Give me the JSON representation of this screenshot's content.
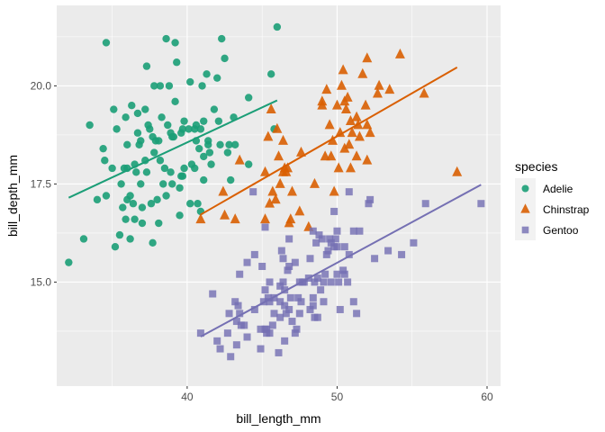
{
  "chart_data": {
    "type": "scatter",
    "xlabel": "bill_length_mm",
    "ylabel": "bill_depth_mm",
    "xlim": [
      31.3,
      60.9
    ],
    "ylim": [
      12.35,
      22.05
    ],
    "x_ticks": [
      40,
      50,
      60
    ],
    "x_tick_labels": [
      "40",
      "50",
      "60"
    ],
    "y_ticks": [
      15.0,
      17.5,
      20.0
    ],
    "y_tick_labels": [
      "15.0",
      "17.5",
      "20.0"
    ],
    "grid": true,
    "background": "#EBEBEB",
    "legend": {
      "title": "species",
      "position": "right"
    },
    "series": [
      {
        "name": "Adelie",
        "color": "#1B9E77",
        "marker": "circle",
        "fit_line": {
          "x": [
            32.1,
            46.0
          ],
          "y": [
            17.15,
            19.63
          ]
        },
        "points": [
          [
            32.1,
            15.5
          ],
          [
            33.1,
            16.1
          ],
          [
            33.5,
            19.0
          ],
          [
            34.0,
            17.1
          ],
          [
            34.4,
            18.4
          ],
          [
            34.5,
            18.1
          ],
          [
            34.6,
            21.1
          ],
          [
            34.6,
            17.2
          ],
          [
            35.0,
            17.9
          ],
          [
            35.1,
            19.4
          ],
          [
            35.2,
            15.9
          ],
          [
            35.3,
            18.9
          ],
          [
            35.5,
            16.2
          ],
          [
            35.6,
            17.5
          ],
          [
            35.7,
            16.9
          ],
          [
            35.9,
            19.2
          ],
          [
            35.9,
            16.6
          ],
          [
            36.0,
            18.5
          ],
          [
            36.0,
            17.9
          ],
          [
            36.0,
            17.1
          ],
          [
            36.2,
            17.2
          ],
          [
            36.2,
            16.1
          ],
          [
            36.3,
            19.5
          ],
          [
            36.4,
            17.0
          ],
          [
            36.5,
            18.0
          ],
          [
            36.5,
            16.6
          ],
          [
            36.6,
            17.8
          ],
          [
            36.7,
            18.8
          ],
          [
            36.7,
            19.3
          ],
          [
            36.8,
            18.5
          ],
          [
            36.9,
            18.6
          ],
          [
            37.0,
            16.9
          ],
          [
            37.0,
            16.5
          ],
          [
            37.2,
            18.1
          ],
          [
            37.2,
            19.4
          ],
          [
            37.3,
            20.5
          ],
          [
            37.3,
            17.8
          ],
          [
            37.5,
            18.9
          ],
          [
            37.6,
            17.0
          ],
          [
            37.7,
            18.7
          ],
          [
            37.7,
            16.0
          ],
          [
            37.8,
            18.3
          ],
          [
            37.8,
            20.0
          ],
          [
            37.9,
            18.6
          ],
          [
            38.0,
            17.1
          ],
          [
            38.1,
            18.6
          ],
          [
            38.1,
            16.5
          ],
          [
            38.2,
            18.1
          ],
          [
            38.2,
            20.0
          ],
          [
            38.3,
            19.2
          ],
          [
            38.5,
            17.9
          ],
          [
            38.6,
            21.2
          ],
          [
            38.6,
            17.2
          ],
          [
            38.7,
            19.0
          ],
          [
            38.8,
            20.0
          ],
          [
            38.9,
            18.8
          ],
          [
            38.9,
            17.8
          ],
          [
            39.0,
            17.5
          ],
          [
            39.0,
            18.7
          ],
          [
            39.1,
            18.7
          ],
          [
            39.2,
            19.6
          ],
          [
            39.2,
            21.1
          ],
          [
            39.3,
            20.6
          ],
          [
            39.5,
            17.4
          ],
          [
            39.5,
            16.7
          ],
          [
            39.6,
            17.7
          ],
          [
            39.6,
            18.8
          ],
          [
            39.7,
            17.7
          ],
          [
            39.7,
            18.9
          ],
          [
            39.8,
            19.1
          ],
          [
            40.1,
            18.9
          ],
          [
            40.2,
            17.0
          ],
          [
            40.2,
            20.1
          ],
          [
            40.3,
            18.0
          ],
          [
            40.5,
            17.9
          ],
          [
            40.5,
            18.9
          ],
          [
            40.6,
            18.6
          ],
          [
            40.6,
            19.0
          ],
          [
            40.7,
            17.0
          ],
          [
            40.8,
            18.4
          ],
          [
            40.9,
            16.8
          ],
          [
            40.9,
            18.9
          ],
          [
            41.0,
            20.0
          ],
          [
            41.1,
            18.2
          ],
          [
            41.1,
            19.1
          ],
          [
            41.1,
            17.6
          ],
          [
            41.3,
            20.3
          ],
          [
            41.4,
            18.6
          ],
          [
            41.4,
            18.5
          ],
          [
            41.5,
            18.3
          ],
          [
            41.6,
            18.0
          ],
          [
            41.8,
            19.4
          ],
          [
            42.0,
            20.2
          ],
          [
            42.1,
            19.1
          ],
          [
            42.2,
            18.5
          ],
          [
            42.3,
            21.2
          ],
          [
            42.5,
            20.7
          ],
          [
            42.7,
            18.3
          ],
          [
            42.8,
            18.5
          ],
          [
            42.9,
            17.6
          ],
          [
            43.1,
            19.2
          ],
          [
            43.2,
            18.5
          ],
          [
            44.1,
            19.7
          ],
          [
            44.1,
            18.0
          ],
          [
            45.6,
            20.3
          ],
          [
            45.8,
            18.9
          ],
          [
            46.0,
            21.5
          ],
          [
            37.4,
            19.0
          ],
          [
            36.9,
            17.5
          ],
          [
            35.8,
            17.9
          ],
          [
            38.4,
            17.5
          ],
          [
            39.8,
            17.9
          ]
        ]
      },
      {
        "name": "Chinstrap",
        "color": "#D95F02",
        "marker": "triangle",
        "fit_line": {
          "x": [
            40.9,
            58.0
          ],
          "y": [
            16.72,
            20.47
          ]
        },
        "points": [
          [
            40.9,
            16.6
          ],
          [
            42.4,
            17.3
          ],
          [
            42.5,
            16.7
          ],
          [
            43.2,
            16.6
          ],
          [
            43.5,
            18.1
          ],
          [
            45.2,
            17.8
          ],
          [
            45.2,
            16.6
          ],
          [
            45.4,
            18.7
          ],
          [
            45.5,
            17.0
          ],
          [
            45.6,
            19.4
          ],
          [
            45.7,
            17.3
          ],
          [
            45.9,
            17.1
          ],
          [
            46.0,
            18.9
          ],
          [
            46.1,
            18.2
          ],
          [
            46.2,
            17.5
          ],
          [
            46.4,
            18.6
          ],
          [
            46.4,
            17.8
          ],
          [
            46.5,
            17.9
          ],
          [
            46.6,
            17.8
          ],
          [
            46.7,
            17.9
          ],
          [
            46.8,
            16.5
          ],
          [
            46.9,
            16.6
          ],
          [
            47.0,
            17.3
          ],
          [
            47.5,
            16.8
          ],
          [
            47.6,
            18.3
          ],
          [
            48.1,
            16.4
          ],
          [
            48.5,
            17.5
          ],
          [
            49.0,
            19.5
          ],
          [
            49.2,
            18.2
          ],
          [
            49.3,
            19.9
          ],
          [
            49.5,
            19.0
          ],
          [
            49.6,
            18.2
          ],
          [
            49.7,
            18.6
          ],
          [
            49.8,
            17.3
          ],
          [
            50.0,
            19.5
          ],
          [
            50.1,
            17.9
          ],
          [
            50.2,
            18.8
          ],
          [
            50.3,
            20.0
          ],
          [
            50.5,
            19.6
          ],
          [
            50.5,
            18.4
          ],
          [
            50.6,
            19.4
          ],
          [
            50.7,
            19.7
          ],
          [
            50.8,
            18.5
          ],
          [
            50.9,
            19.1
          ],
          [
            50.9,
            17.9
          ],
          [
            51.0,
            18.8
          ],
          [
            51.3,
            19.2
          ],
          [
            51.3,
            18.2
          ],
          [
            51.4,
            19.0
          ],
          [
            51.5,
            18.7
          ],
          [
            51.7,
            20.3
          ],
          [
            51.9,
            19.5
          ],
          [
            52.0,
            18.1
          ],
          [
            52.0,
            19.0
          ],
          [
            52.0,
            20.7
          ],
          [
            52.2,
            18.8
          ],
          [
            52.7,
            19.8
          ],
          [
            52.8,
            20.0
          ],
          [
            53.5,
            19.9
          ],
          [
            54.2,
            20.8
          ],
          [
            55.8,
            19.8
          ],
          [
            58.0,
            17.8
          ],
          [
            49.0,
            19.6
          ],
          [
            50.4,
            20.4
          ]
        ]
      },
      {
        "name": "Gentoo",
        "color": "#7570B3",
        "marker": "square",
        "fit_line": {
          "x": [
            40.9,
            59.6
          ],
          "y": [
            13.61,
            17.48
          ]
        },
        "points": [
          [
            40.9,
            13.7
          ],
          [
            41.7,
            14.7
          ],
          [
            42.0,
            13.5
          ],
          [
            42.2,
            13.3
          ],
          [
            42.7,
            13.7
          ],
          [
            42.8,
            14.2
          ],
          [
            42.9,
            13.1
          ],
          [
            43.2,
            14.5
          ],
          [
            43.3,
            13.4
          ],
          [
            43.3,
            14.0
          ],
          [
            43.4,
            14.4
          ],
          [
            43.5,
            14.2
          ],
          [
            43.5,
            15.2
          ],
          [
            43.6,
            13.9
          ],
          [
            43.8,
            13.9
          ],
          [
            44.0,
            13.6
          ],
          [
            44.4,
            17.3
          ],
          [
            44.5,
            14.3
          ],
          [
            44.5,
            15.7
          ],
          [
            44.9,
            13.3
          ],
          [
            44.9,
            13.8
          ],
          [
            45.0,
            15.4
          ],
          [
            45.1,
            14.5
          ],
          [
            45.2,
            14.8
          ],
          [
            45.2,
            13.8
          ],
          [
            45.2,
            16.4
          ],
          [
            45.3,
            13.7
          ],
          [
            45.3,
            13.8
          ],
          [
            45.4,
            14.6
          ],
          [
            45.5,
            13.7
          ],
          [
            45.5,
            14.5
          ],
          [
            45.5,
            15.0
          ],
          [
            45.7,
            13.9
          ],
          [
            45.8,
            14.2
          ],
          [
            45.8,
            14.6
          ],
          [
            46.1,
            13.2
          ],
          [
            46.2,
            14.1
          ],
          [
            46.2,
            14.5
          ],
          [
            46.2,
            14.9
          ],
          [
            46.3,
            15.8
          ],
          [
            46.4,
            15.0
          ],
          [
            46.4,
            15.6
          ],
          [
            46.5,
            13.5
          ],
          [
            46.5,
            14.4
          ],
          [
            46.5,
            14.8
          ],
          [
            46.6,
            14.2
          ],
          [
            46.7,
            15.3
          ],
          [
            46.8,
            14.3
          ],
          [
            46.8,
            15.4
          ],
          [
            46.8,
            16.1
          ],
          [
            46.9,
            14.6
          ],
          [
            47.2,
            13.7
          ],
          [
            47.2,
            15.5
          ],
          [
            47.3,
            13.8
          ],
          [
            47.4,
            14.6
          ],
          [
            47.5,
            14.2
          ],
          [
            47.5,
            15.0
          ],
          [
            47.6,
            14.5
          ],
          [
            47.7,
            15.0
          ],
          [
            47.8,
            15.0
          ],
          [
            48.1,
            15.1
          ],
          [
            48.2,
            14.3
          ],
          [
            48.2,
            15.6
          ],
          [
            48.4,
            14.4
          ],
          [
            48.4,
            14.6
          ],
          [
            48.4,
            16.3
          ],
          [
            48.5,
            14.1
          ],
          [
            48.5,
            15.0
          ],
          [
            48.6,
            16.0
          ],
          [
            48.7,
            14.1
          ],
          [
            48.7,
            15.1
          ],
          [
            48.8,
            16.2
          ],
          [
            49.0,
            16.1
          ],
          [
            49.1,
            14.5
          ],
          [
            49.1,
            15.0
          ],
          [
            49.2,
            15.2
          ],
          [
            49.3,
            15.7
          ],
          [
            49.4,
            15.8
          ],
          [
            49.5,
            16.1
          ],
          [
            49.6,
            15.0
          ],
          [
            49.6,
            16.0
          ],
          [
            49.8,
            15.9
          ],
          [
            49.8,
            16.8
          ],
          [
            49.9,
            16.1
          ],
          [
            50.0,
            15.2
          ],
          [
            50.0,
            15.9
          ],
          [
            50.0,
            16.3
          ],
          [
            50.1,
            15.0
          ],
          [
            50.2,
            14.3
          ],
          [
            50.4,
            15.3
          ],
          [
            50.5,
            15.2
          ],
          [
            50.5,
            15.9
          ],
          [
            50.7,
            15.0
          ],
          [
            50.8,
            15.7
          ],
          [
            50.8,
            17.3
          ],
          [
            51.1,
            14.5
          ],
          [
            51.1,
            16.3
          ],
          [
            51.3,
            14.2
          ],
          [
            51.5,
            16.3
          ],
          [
            52.1,
            17.0
          ],
          [
            52.2,
            17.1
          ],
          [
            52.5,
            15.6
          ],
          [
            53.4,
            15.8
          ],
          [
            54.3,
            15.7
          ],
          [
            55.1,
            16.0
          ],
          [
            55.9,
            17.0
          ],
          [
            59.6,
            17.0
          ],
          [
            47.0,
            14.0
          ],
          [
            48.9,
            14.8
          ],
          [
            44.0,
            15.5
          ]
        ]
      }
    ]
  }
}
